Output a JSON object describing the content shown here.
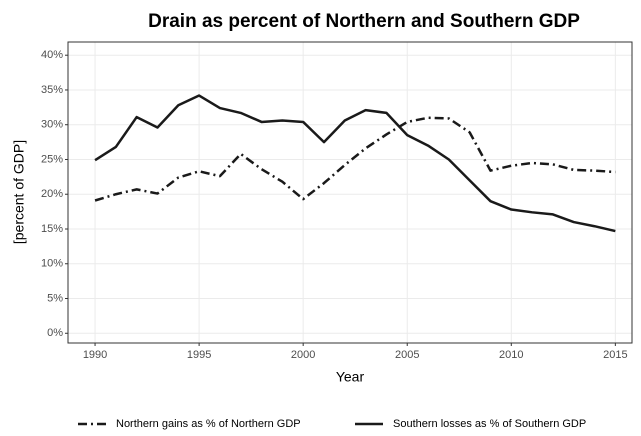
{
  "chart_data": {
    "type": "line",
    "title": "Drain as percent of Northern and Southern GDP",
    "x_label": "Year",
    "y_label": "[percent of GDP]",
    "x": [
      1990,
      1991,
      1992,
      1993,
      1994,
      1995,
      1996,
      1997,
      1998,
      1999,
      2000,
      2001,
      2002,
      2003,
      2004,
      2005,
      2006,
      2007,
      2008,
      2009,
      2010,
      2011,
      2012,
      2013,
      2014,
      2015
    ],
    "series": [
      {
        "name": "Northern gains as % of Northern GDP",
        "color": "#1a1a1a",
        "dash": "dash-dot",
        "values": [
          19.1,
          20.0,
          20.7,
          20.1,
          22.4,
          23.3,
          22.6,
          25.8,
          23.6,
          21.8,
          19.3,
          21.6,
          24.2,
          26.6,
          28.6,
          30.4,
          31.0,
          30.9,
          28.9,
          23.4,
          24.1,
          24.5,
          24.3,
          23.5,
          23.4,
          23.2
        ]
      },
      {
        "name": "Southern losses as % of Southern GDP",
        "color": "#1a1a1a",
        "dash": "solid",
        "values": [
          24.9,
          26.8,
          31.1,
          29.6,
          32.8,
          34.2,
          32.4,
          31.7,
          30.4,
          30.6,
          30.4,
          27.5,
          30.6,
          32.1,
          31.7,
          28.5,
          27.0,
          25.0,
          22.0,
          19.0,
          17.8,
          17.4,
          17.1,
          16.0,
          15.4,
          14.7
        ]
      }
    ],
    "xlim": [
      1988.7,
      2015.8
    ],
    "ylim": [
      -1.4,
      41.9
    ],
    "xticks": [
      1990,
      1995,
      2000,
      2005,
      2010,
      2015
    ],
    "yticks": [
      {
        "value": 0,
        "label": "0%"
      },
      {
        "value": 5,
        "label": "5%"
      },
      {
        "value": 10,
        "label": "10%"
      },
      {
        "value": 15,
        "label": "15%"
      },
      {
        "value": 20,
        "label": "20%"
      },
      {
        "value": 25,
        "label": "25%"
      },
      {
        "value": 30,
        "label": "30%"
      },
      {
        "value": 35,
        "label": "35%"
      },
      {
        "value": 40,
        "label": "40%"
      }
    ],
    "grid": true,
    "legend": "bottom"
  }
}
